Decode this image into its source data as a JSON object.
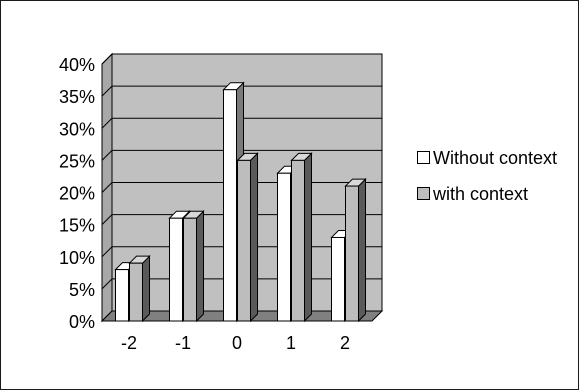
{
  "chart_data": {
    "type": "bar",
    "title": "",
    "xlabel": "",
    "ylabel": "",
    "categories": [
      "-2",
      "-1",
      "0",
      "1",
      "2"
    ],
    "series": [
      {
        "name": "Without context",
        "values": [
          8,
          16,
          36,
          23,
          13
        ]
      },
      {
        "name": "with context",
        "values": [
          9,
          16,
          25,
          25,
          21
        ]
      }
    ],
    "ylim": [
      0,
      40
    ],
    "ytick_labels": [
      "0%",
      "5%",
      "10%",
      "15%",
      "20%",
      "25%",
      "30%",
      "35%",
      "40%"
    ],
    "grid": true,
    "legend_position": "right",
    "colors": {
      "without_context": "#ffffff",
      "with_context": "#bdbdbd",
      "wall": "#c0c0c0",
      "floor": "#808080",
      "border": "#000000"
    }
  }
}
